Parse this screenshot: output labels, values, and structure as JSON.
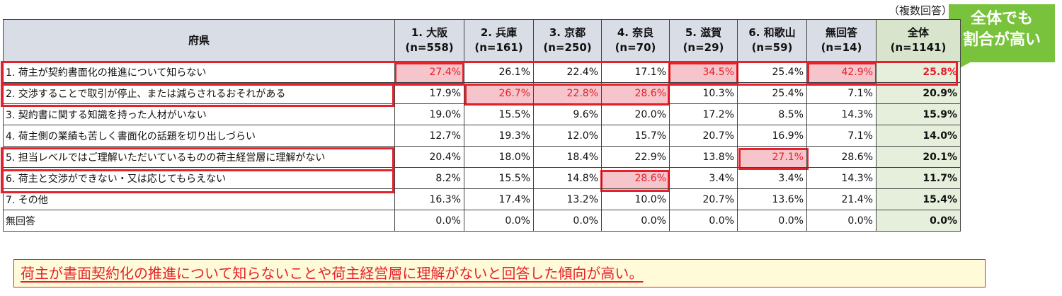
{
  "note": "（複数回答）",
  "callout": {
    "line1": "全体でも",
    "line2": "割合が高い"
  },
  "header": {
    "label": "府県",
    "columns": [
      {
        "name": "1. 大阪",
        "n": "(n=558)"
      },
      {
        "name": "2. 兵庫",
        "n": "(n=161)"
      },
      {
        "name": "3. 京都",
        "n": "(n=250)"
      },
      {
        "name": "4. 奈良",
        "n": "(n=70)"
      },
      {
        "name": "5. 滋賀",
        "n": "(n=29)"
      },
      {
        "name": "6. 和歌山",
        "n": "(n=59)"
      },
      {
        "name": "無回答",
        "n": "(n=14)"
      },
      {
        "name": "全体",
        "n": "(n=1141)"
      }
    ]
  },
  "rows": [
    {
      "label": "1. 荷主が契約書面化の推進について知らない",
      "values": [
        "27.4%",
        "26.1%",
        "22.4%",
        "17.1%",
        "34.5%",
        "25.4%",
        "42.9%",
        "25.8%"
      ]
    },
    {
      "label": "2. 交渉することで取引が停止、または減らされるおそれがある",
      "values": [
        "17.9%",
        "26.7%",
        "22.8%",
        "28.6%",
        "10.3%",
        "25.4%",
        "7.1%",
        "20.9%"
      ]
    },
    {
      "label": "3. 契約書に関する知識を持った人材がいない",
      "values": [
        "19.0%",
        "15.5%",
        "9.6%",
        "20.0%",
        "17.2%",
        "8.5%",
        "14.3%",
        "15.9%"
      ]
    },
    {
      "label": "4. 荷主側の業績も苦しく書面化の話題を切り出しづらい",
      "values": [
        "12.7%",
        "19.3%",
        "12.0%",
        "15.7%",
        "20.7%",
        "16.9%",
        "7.1%",
        "14.0%"
      ]
    },
    {
      "label": "5. 担当レベルではご理解いただいているものの荷主経営層に理解がない",
      "values": [
        "20.4%",
        "18.0%",
        "18.4%",
        "22.9%",
        "13.8%",
        "27.1%",
        "28.6%",
        "20.1%"
      ]
    },
    {
      "label": "6. 荷主と交渉ができない・又は応じてもらえない",
      "values": [
        "8.2%",
        "15.5%",
        "14.8%",
        "28.6%",
        "3.4%",
        "3.4%",
        "14.3%",
        "11.7%"
      ]
    },
    {
      "label": "7. その他",
      "values": [
        "16.3%",
        "17.4%",
        "13.2%",
        "10.0%",
        "20.7%",
        "13.6%",
        "21.4%",
        "15.4%"
      ]
    },
    {
      "label": "無回答",
      "values": [
        "0.0%",
        "0.0%",
        "0.0%",
        "0.0%",
        "0.0%",
        "0.0%",
        "0.0%",
        "0.0%"
      ]
    }
  ],
  "summary": "荷主が書面契約化の推進について知らないことや荷主経営層に理解がないと回答した傾向が高い。",
  "colors": {
    "highlight_border": "#e5212b",
    "highlight_fill": "#f6c5cb",
    "callout": "#78c23c",
    "total_col": "#e6efdc",
    "header": "#d9dde6"
  }
}
